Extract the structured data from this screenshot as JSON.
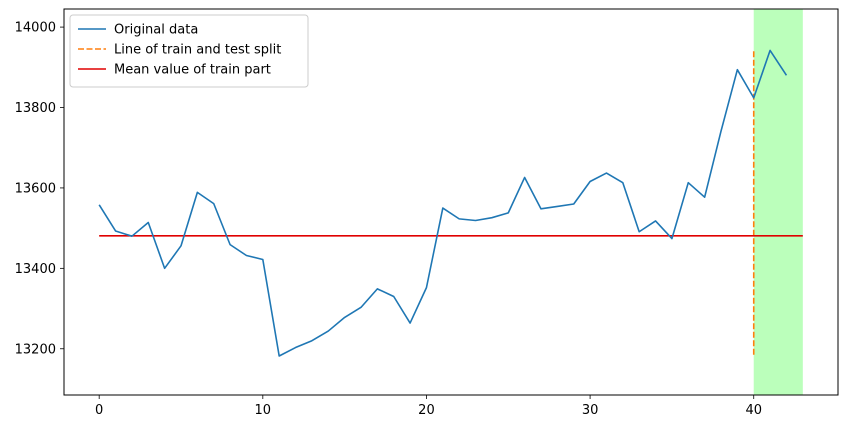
{
  "chart_data": {
    "type": "line",
    "title": "",
    "xlabel": "",
    "ylabel": "",
    "xlim": [
      -2.15,
      45.15
    ],
    "ylim": [
      13085,
      14045
    ],
    "xticks": [
      0,
      10,
      20,
      30,
      40
    ],
    "xtick_labels": [
      "0",
      "10",
      "20",
      "30",
      "40"
    ],
    "yticks": [
      13200,
      13400,
      13600,
      13800,
      14000
    ],
    "ytick_labels": [
      "13200",
      "13400",
      "13600",
      "13800",
      "14000"
    ],
    "grid": false,
    "legend_position": "top-left",
    "series": [
      {
        "name": "Original data",
        "color": "#1f77b4",
        "style": "solid",
        "x": [
          0,
          1,
          2,
          3,
          4,
          5,
          6,
          7,
          8,
          9,
          10,
          11,
          12,
          13,
          14,
          15,
          16,
          17,
          18,
          19,
          20,
          21,
          22,
          23,
          24,
          25,
          26,
          27,
          28,
          29,
          30,
          31,
          32,
          33,
          34,
          35,
          36,
          37,
          38,
          39,
          40,
          41,
          42
        ],
        "y": [
          13558,
          13493,
          13480,
          13514,
          13400,
          13456,
          13589,
          13561,
          13459,
          13432,
          13422,
          13182,
          13203,
          13220,
          13244,
          13278,
          13303,
          13349,
          13330,
          13264,
          13352,
          13550,
          13523,
          13519,
          13526,
          13538,
          13626,
          13548,
          13554,
          13560,
          13616,
          13637,
          13613,
          13491,
          13518,
          13474,
          13613,
          13577,
          13741,
          13894,
          13824,
          13942,
          13880
        ]
      },
      {
        "name": "Line of train and test split",
        "color": "#ff7f0e",
        "style": "dashed",
        "x": [
          40,
          40
        ],
        "y": [
          13185,
          13942
        ]
      },
      {
        "name": "Mean value of train part",
        "color": "#e00000",
        "style": "solid",
        "x": [
          0,
          43
        ],
        "y": [
          13481,
          13481
        ]
      }
    ],
    "shaded_region": {
      "x_start": 40,
      "x_end": 43,
      "color": "#bbffbb"
    }
  }
}
